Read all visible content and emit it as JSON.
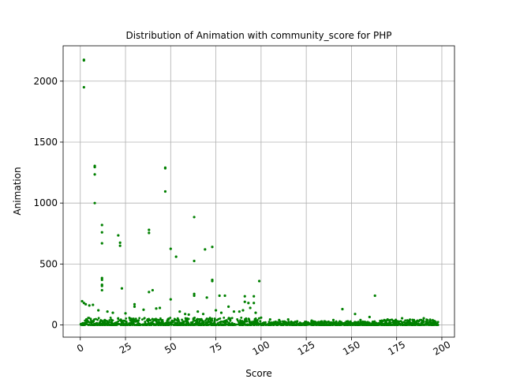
{
  "chart_data": {
    "type": "scatter",
    "title": "Distribution of Animation with community_score for PHP",
    "xlabel": "Score",
    "ylabel": "Animation",
    "xlim": [
      -9.5,
      207
    ],
    "ylim": [
      -100,
      2290
    ],
    "x_ticks": [
      0,
      25,
      50,
      75,
      100,
      125,
      150,
      175,
      200
    ],
    "y_ticks": [
      0,
      500,
      1000,
      1500,
      2000
    ],
    "x_tick_labels": [
      "0",
      "25",
      "50",
      "75",
      "100",
      "125",
      "150",
      "175",
      "200"
    ],
    "y_tick_labels": [
      "0",
      "500",
      "1000",
      "1500",
      "2000"
    ],
    "grid": true,
    "marker_color": "#008000",
    "series": [
      {
        "points": [
          [
            2,
            2175
          ],
          [
            2,
            2170
          ],
          [
            2,
            1950
          ],
          [
            8,
            1305
          ],
          [
            8,
            1295
          ],
          [
            8,
            1235
          ],
          [
            8,
            1000
          ],
          [
            12,
            820
          ],
          [
            12,
            760
          ],
          [
            12,
            670
          ],
          [
            12,
            385
          ],
          [
            12,
            370
          ],
          [
            12,
            330
          ],
          [
            12,
            320
          ],
          [
            12,
            285
          ],
          [
            21,
            735
          ],
          [
            22,
            675
          ],
          [
            22,
            650
          ],
          [
            23,
            300
          ],
          [
            38,
            780
          ],
          [
            38,
            755
          ],
          [
            38,
            270
          ],
          [
            40,
            285
          ],
          [
            47,
            1290
          ],
          [
            47,
            1285
          ],
          [
            47,
            1095
          ],
          [
            50,
            625
          ],
          [
            50,
            210
          ],
          [
            53,
            560
          ],
          [
            63,
            885
          ],
          [
            63,
            525
          ],
          [
            63,
            255
          ],
          [
            63,
            240
          ],
          [
            69,
            620
          ],
          [
            70,
            225
          ],
          [
            73,
            640
          ],
          [
            73,
            370
          ],
          [
            73,
            360
          ],
          [
            77,
            240
          ],
          [
            80,
            240
          ],
          [
            91,
            235
          ],
          [
            91,
            190
          ],
          [
            93,
            180
          ],
          [
            96,
            235
          ],
          [
            96,
            180
          ],
          [
            99,
            360
          ],
          [
            1,
            195
          ],
          [
            2,
            180
          ],
          [
            3,
            170
          ],
          [
            5,
            160
          ],
          [
            7,
            165
          ],
          [
            10,
            120
          ],
          [
            15,
            110
          ],
          [
            18,
            100
          ],
          [
            25,
            95
          ],
          [
            30,
            170
          ],
          [
            30,
            150
          ],
          [
            35,
            125
          ],
          [
            42,
            135
          ],
          [
            44,
            140
          ],
          [
            55,
            110
          ],
          [
            58,
            90
          ],
          [
            60,
            85
          ],
          [
            65,
            110
          ],
          [
            68,
            90
          ],
          [
            75,
            120
          ],
          [
            78,
            100
          ],
          [
            82,
            150
          ],
          [
            85,
            110
          ],
          [
            88,
            110
          ],
          [
            90,
            120
          ],
          [
            94,
            140
          ],
          [
            97,
            100
          ],
          [
            100,
            60
          ],
          [
            105,
            45
          ],
          [
            110,
            40
          ],
          [
            115,
            45
          ],
          [
            120,
            30
          ],
          [
            128,
            35
          ],
          [
            135,
            30
          ],
          [
            140,
            40
          ],
          [
            145,
            130
          ],
          [
            148,
            30
          ],
          [
            152,
            90
          ],
          [
            155,
            40
          ],
          [
            160,
            65
          ],
          [
            163,
            240
          ],
          [
            170,
            45
          ],
          [
            178,
            55
          ],
          [
            182,
            35
          ],
          [
            186,
            30
          ],
          [
            190,
            55
          ],
          [
            192,
            40
          ],
          [
            195,
            20
          ]
        ],
        "dense_bands": [
          {
            "x": [
              0,
              100
            ],
            "y_max": 60
          },
          {
            "x": [
              100,
              165
            ],
            "y_max": 30
          },
          {
            "x": [
              165,
              198
            ],
            "y_max": 45
          }
        ]
      }
    ]
  }
}
